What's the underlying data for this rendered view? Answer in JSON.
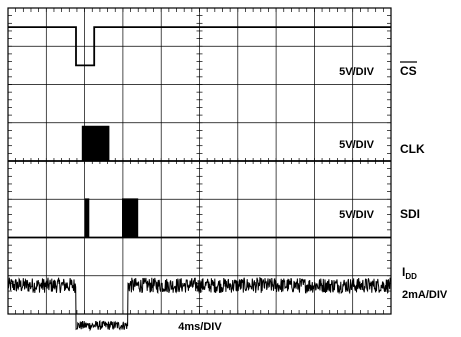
{
  "chart_data": {
    "type": "line",
    "title": "",
    "xlabel": "4ms/DIV",
    "ylabel": "",
    "grid": true,
    "x_divisions": 10,
    "y_divisions": 8,
    "x_unit": "ms",
    "time_per_division_ms": 4,
    "series": [
      {
        "name": "CS",
        "overline": true,
        "scale_label": "5V/DIV",
        "kind": "step",
        "baseline_div": 7.5,
        "points": [
          [
            0,
            7.5
          ],
          [
            7.1,
            7.5
          ],
          [
            7.1,
            6.5
          ],
          [
            9.0,
            6.5
          ],
          [
            9.0,
            7.5
          ],
          [
            40,
            7.5
          ]
        ]
      },
      {
        "name": "CLK",
        "overline": false,
        "scale_label": "5V/DIV",
        "kind": "pulses",
        "baseline_div": 4.0,
        "amplitude_div": 0.9,
        "pulse_start_ms": 7.8,
        "pulse_end_ms": 10.6,
        "pulse_count": 14
      },
      {
        "name": "SDI",
        "overline": false,
        "scale_label": "5V/DIV",
        "kind": "pulses",
        "baseline_div": 2.0,
        "amplitude_div": 1.0,
        "bursts": [
          {
            "start_ms": 8.1,
            "end_ms": 8.5,
            "count": 2
          },
          {
            "start_ms": 12.0,
            "end_ms": 13.6,
            "count": 8
          }
        ]
      },
      {
        "name": "I",
        "subscript": "DD",
        "scale_label": "2mA/DIV",
        "kind": "noise",
        "baseline_div": 0.75,
        "noise_div": 0.2,
        "low_segment_ms": [
          7.1,
          12.5
        ],
        "low_level_div": -0.3
      }
    ]
  }
}
